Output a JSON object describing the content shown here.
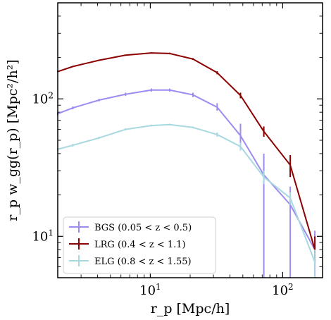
{
  "chart_data": {
    "type": "line",
    "xscale": "log",
    "yscale": "log",
    "xlim": [
      2.0,
      200.0
    ],
    "ylim": [
      5.0,
      500.0
    ],
    "xlabel": "r_p [Mpc/h]",
    "ylabel": "r_p w_gg(r_p) [Mpc²/h²]",
    "x_ticks": [
      {
        "value": 10,
        "base": "10",
        "exp": "1"
      },
      {
        "value": 100,
        "base": "10",
        "exp": "2"
      }
    ],
    "y_ticks": [
      {
        "value": 10,
        "base": "10",
        "exp": "1"
      },
      {
        "value": 100,
        "base": "10",
        "exp": "2"
      }
    ],
    "legend_position": "lower-left",
    "series": [
      {
        "name": "BGS (0.05 < z < 0.5)",
        "color": "#9b8cf0",
        "x": [
          2.0,
          2.6,
          4.1,
          6.5,
          10.2,
          14.0,
          21.0,
          32.0,
          48.0,
          72.0,
          114.0,
          175.0
        ],
        "y": [
          78,
          86,
          98,
          108,
          116,
          116,
          107,
          87,
          54,
          28,
          17,
          8
        ],
        "yerr_low": [
          2,
          2,
          2,
          3,
          3,
          3,
          4,
          5,
          10,
          28,
          17,
          8
        ],
        "yerr_high": [
          2,
          2,
          2,
          3,
          3,
          3,
          4,
          6,
          12,
          12,
          6,
          3
        ]
      },
      {
        "name": "LRG (0.4 < z < 1.1)",
        "color": "#8b0000",
        "x": [
          2.0,
          2.6,
          4.1,
          6.5,
          10.2,
          14.0,
          21.0,
          32.0,
          48.0,
          72.0,
          114.0,
          175.0
        ],
        "y": [
          158,
          172,
          191,
          208,
          216,
          214,
          195,
          155,
          106,
          58,
          33,
          8
        ],
        "yerr_low": [
          1,
          1,
          2,
          2,
          2,
          3,
          3,
          4,
          5,
          5,
          6,
          1.5
        ],
        "yerr_high": [
          1,
          1,
          2,
          2,
          2,
          3,
          3,
          4,
          5,
          5,
          6,
          2
        ]
      },
      {
        "name": "ELG (0.8 < z < 1.55)",
        "color": "#a8d8e0",
        "x": [
          2.0,
          2.6,
          4.1,
          6.5,
          10.2,
          14.0,
          21.0,
          32.0,
          48.0,
          72.0,
          114.0,
          175.0
        ],
        "y": [
          43,
          46,
          52,
          60,
          64,
          65,
          62,
          55,
          45,
          27,
          19,
          6.5
        ],
        "yerr_low": [
          1,
          1,
          1,
          1,
          1,
          1,
          1,
          2,
          3,
          3,
          2,
          1.5
        ],
        "yerr_high": [
          1,
          1,
          1,
          1,
          1,
          1,
          1,
          2,
          3,
          3,
          2,
          1.5
        ]
      }
    ]
  }
}
